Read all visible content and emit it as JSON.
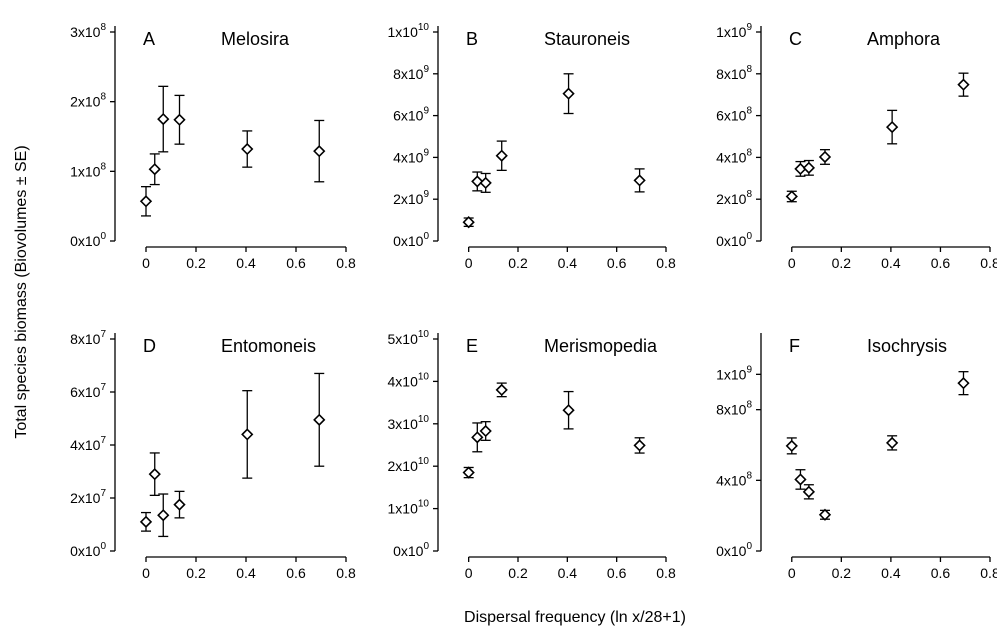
{
  "figure": {
    "ylabel": "Total species biomass  (Biovolumes ± SE)",
    "xlabel": "Dispersal frequency (ln x/28+1)"
  },
  "chart_data": [
    {
      "type": "scatter",
      "letter": "A",
      "title": "Melosira",
      "xlim": [
        -0.1,
        0.8
      ],
      "xticks": [
        0,
        0.2,
        0.4,
        0.6,
        0.8
      ],
      "xtick_labels": [
        "0",
        "0.2",
        "0.4",
        "0.6",
        "0.8"
      ],
      "ylim": [
        0,
        300000000
      ],
      "yticks": [
        0,
        100000000,
        200000000,
        300000000
      ],
      "ytick_labels": [
        {
          "m": "0x10",
          "e": "0"
        },
        {
          "m": "1x10",
          "e": "8"
        },
        {
          "m": "2x10",
          "e": "8"
        },
        {
          "m": "3x10",
          "e": "8"
        }
      ],
      "points": [
        {
          "x": 0,
          "y": 57000000,
          "se": 21000000
        },
        {
          "x": 0.035,
          "y": 103000000,
          "se": 22000000
        },
        {
          "x": 0.069,
          "y": 175000000,
          "se": 47000000
        },
        {
          "x": 0.134,
          "y": 174000000,
          "se": 35000000
        },
        {
          "x": 0.405,
          "y": 132000000,
          "se": 26000000
        },
        {
          "x": 0.693,
          "y": 129000000,
          "se": 44000000
        }
      ]
    },
    {
      "type": "scatter",
      "letter": "B",
      "title": "Stauroneis",
      "xlim": [
        -0.1,
        0.8
      ],
      "xticks": [
        0,
        0.2,
        0.4,
        0.6,
        0.8
      ],
      "xtick_labels": [
        "0",
        "0.2",
        "0.4",
        "0.6",
        "0.8"
      ],
      "ylim": [
        0,
        10000000000
      ],
      "yticks": [
        0,
        2000000000,
        4000000000,
        6000000000,
        8000000000,
        10000000000
      ],
      "ytick_labels": [
        {
          "m": "0x10",
          "e": "0"
        },
        {
          "m": "2x10",
          "e": "9"
        },
        {
          "m": "4x10",
          "e": "9"
        },
        {
          "m": "6x10",
          "e": "9"
        },
        {
          "m": "8x10",
          "e": "9"
        },
        {
          "m": "1x10",
          "e": "10"
        }
      ],
      "points": [
        {
          "x": 0,
          "y": 900000000,
          "se": 200000000
        },
        {
          "x": 0.035,
          "y": 2850000000,
          "se": 450000000
        },
        {
          "x": 0.069,
          "y": 2780000000,
          "se": 450000000
        },
        {
          "x": 0.134,
          "y": 4080000000,
          "se": 700000000
        },
        {
          "x": 0.405,
          "y": 7050000000,
          "se": 950000000
        },
        {
          "x": 0.693,
          "y": 2900000000,
          "se": 550000000
        }
      ]
    },
    {
      "type": "scatter",
      "letter": "C",
      "title": "Amphora",
      "xlim": [
        -0.1,
        0.8
      ],
      "xticks": [
        0,
        0.2,
        0.4,
        0.6,
        0.8
      ],
      "xtick_labels": [
        "0",
        "0.2",
        "0.4",
        "0.6",
        "0.8"
      ],
      "ylim": [
        0,
        1000000000
      ],
      "yticks": [
        0,
        200000000,
        400000000,
        600000000,
        800000000,
        1000000000
      ],
      "ytick_labels": [
        {
          "m": "0x10",
          "e": "0"
        },
        {
          "m": "2x10",
          "e": "8"
        },
        {
          "m": "4x10",
          "e": "8"
        },
        {
          "m": "6x10",
          "e": "8"
        },
        {
          "m": "8x10",
          "e": "8"
        },
        {
          "m": "1x10",
          "e": "9"
        }
      ],
      "points": [
        {
          "x": 0,
          "y": 213000000,
          "se": 25000000
        },
        {
          "x": 0.035,
          "y": 345000000,
          "se": 35000000
        },
        {
          "x": 0.069,
          "y": 350000000,
          "se": 35000000
        },
        {
          "x": 0.134,
          "y": 402000000,
          "se": 35000000
        },
        {
          "x": 0.405,
          "y": 545000000,
          "se": 80000000
        },
        {
          "x": 0.693,
          "y": 748000000,
          "se": 55000000
        }
      ]
    },
    {
      "type": "scatter",
      "letter": "D",
      "title": "Entomoneis",
      "xlim": [
        -0.1,
        0.8
      ],
      "xticks": [
        0,
        0.2,
        0.4,
        0.6,
        0.8
      ],
      "xtick_labels": [
        "0",
        "0.2",
        "0.4",
        "0.6",
        "0.8"
      ],
      "ylim": [
        0,
        80000000
      ],
      "yticks": [
        0,
        20000000,
        40000000,
        60000000,
        80000000
      ],
      "ytick_labels": [
        {
          "m": "0x10",
          "e": "0"
        },
        {
          "m": "2x10",
          "e": "7"
        },
        {
          "m": "4x10",
          "e": "7"
        },
        {
          "m": "6x10",
          "e": "7"
        },
        {
          "m": "8x10",
          "e": "7"
        }
      ],
      "points": [
        {
          "x": 0,
          "y": 11000000,
          "se": 3500000
        },
        {
          "x": 0.035,
          "y": 29000000,
          "se": 8000000
        },
        {
          "x": 0.069,
          "y": 13500000,
          "se": 8000000
        },
        {
          "x": 0.134,
          "y": 17500000,
          "se": 5000000
        },
        {
          "x": 0.405,
          "y": 44000000,
          "se": 16500000
        },
        {
          "x": 0.693,
          "y": 49500000,
          "se": 17500000
        }
      ]
    },
    {
      "type": "scatter",
      "letter": "E",
      "title": "Merismopedia",
      "xlim": [
        -0.1,
        0.8
      ],
      "xticks": [
        0,
        0.2,
        0.4,
        0.6,
        0.8
      ],
      "xtick_labels": [
        "0",
        "0.2",
        "0.4",
        "0.6",
        "0.8"
      ],
      "ylim": [
        0,
        50000000000
      ],
      "yticks": [
        0,
        10000000000,
        20000000000,
        30000000000,
        40000000000,
        50000000000
      ],
      "ytick_labels": [
        {
          "m": "0x10",
          "e": "0"
        },
        {
          "m": "1x10",
          "e": "10"
        },
        {
          "m": "2x10",
          "e": "10"
        },
        {
          "m": "3x10",
          "e": "10"
        },
        {
          "m": "4x10",
          "e": "10"
        },
        {
          "m": "5x10",
          "e": "10"
        }
      ],
      "points": [
        {
          "x": 0,
          "y": 18500000000,
          "se": 1200000000
        },
        {
          "x": 0.035,
          "y": 26800000000,
          "se": 3400000000
        },
        {
          "x": 0.069,
          "y": 28300000000,
          "se": 2200000000
        },
        {
          "x": 0.134,
          "y": 38000000000,
          "se": 1600000000
        },
        {
          "x": 0.405,
          "y": 33200000000,
          "se": 4400000000
        },
        {
          "x": 0.693,
          "y": 24900000000,
          "se": 1800000000
        }
      ]
    },
    {
      "type": "scatter",
      "letter": "F",
      "title": "Isochrysis",
      "xlim": [
        -0.1,
        0.8
      ],
      "xticks": [
        0,
        0.2,
        0.4,
        0.6,
        0.8
      ],
      "xtick_labels": [
        "0",
        "0.2",
        "0.4",
        "0.6",
        "0.8"
      ],
      "ylim": [
        0,
        1200000000
      ],
      "yticks": [
        0,
        400000000,
        800000000,
        1000000000
      ],
      "ytick_labels": [
        {
          "m": "0x10",
          "e": "0"
        },
        {
          "m": "4x10",
          "e": "8"
        },
        {
          "m": "8x10",
          "e": "8"
        },
        {
          "m": "1x10",
          "e": "9"
        }
      ],
      "points": [
        {
          "x": 0,
          "y": 595000000,
          "se": 45000000
        },
        {
          "x": 0.035,
          "y": 405000000,
          "se": 55000000
        },
        {
          "x": 0.069,
          "y": 335000000,
          "se": 40000000
        },
        {
          "x": 0.134,
          "y": 205000000,
          "se": 25000000
        },
        {
          "x": 0.405,
          "y": 612000000,
          "se": 40000000
        },
        {
          "x": 0.693,
          "y": 950000000,
          "se": 65000000
        }
      ]
    }
  ]
}
